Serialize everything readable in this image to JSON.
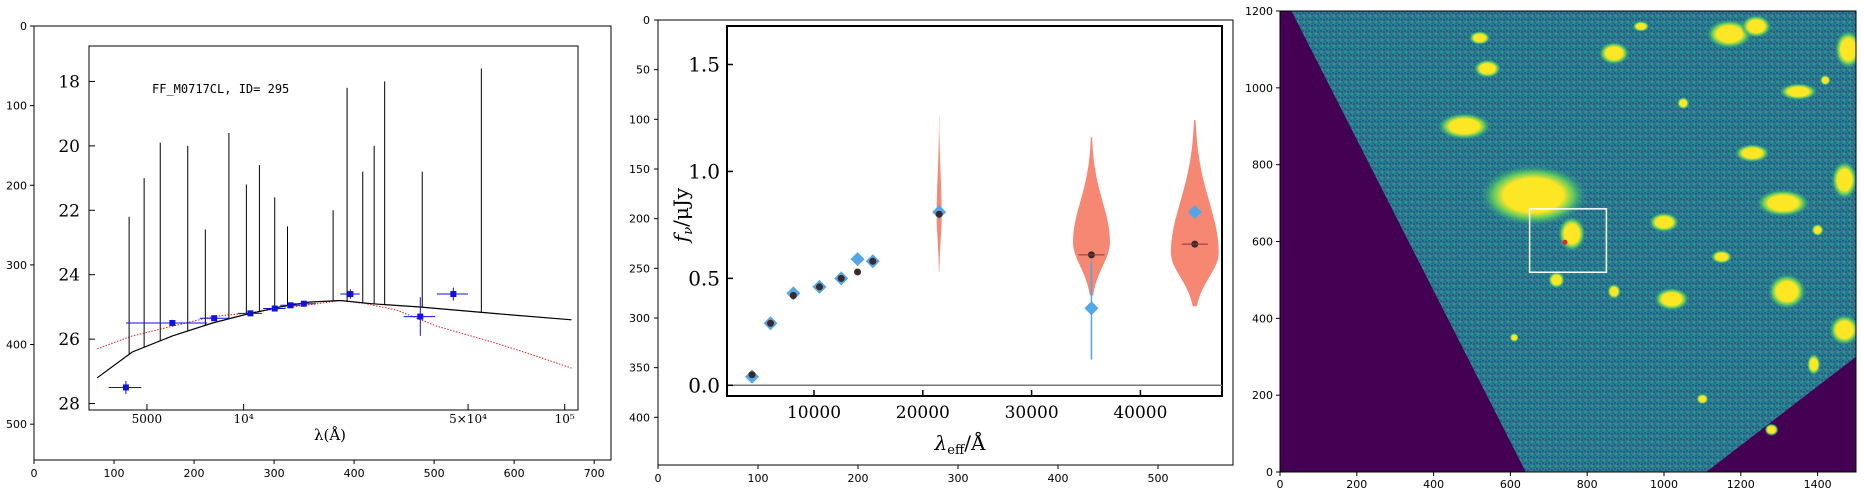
{
  "figure": {
    "panels": [
      {
        "id": "left",
        "frame_ticks_x": [
          "0",
          "100",
          "200",
          "300",
          "400",
          "500",
          "600",
          "700"
        ],
        "frame_ticks_y": [
          "0",
          "100",
          "200",
          "300",
          "400",
          "500"
        ],
        "inner_ticks_x": [
          "5000",
          "10⁴",
          "5×10⁴",
          "10⁵"
        ],
        "inner_ticks_y": [
          "18",
          "20",
          "22",
          "24",
          "26",
          "28"
        ],
        "xlabel": "λ(Å)",
        "annotation": "FF_M0717CL, ID= 295"
      },
      {
        "id": "middle",
        "frame_ticks_x": [
          "0",
          "100",
          "200",
          "300",
          "400",
          "500"
        ],
        "frame_ticks_y": [
          "0",
          "50",
          "100",
          "150",
          "200",
          "250",
          "300",
          "350",
          "400"
        ],
        "inner_ticks_x": [
          "10000",
          "20000",
          "30000",
          "40000"
        ],
        "inner_ticks_y": [
          "0.0",
          "0.5",
          "1.0",
          "1.5"
        ],
        "xlabel": "λ_eff/Å",
        "ylabel": "f_ν/μJy"
      },
      {
        "id": "right",
        "ticks_x": [
          "0",
          "200",
          "400",
          "600",
          "800",
          "1000",
          "1200",
          "1400"
        ],
        "ticks_y": [
          "0",
          "200",
          "400",
          "600",
          "800",
          "1000",
          "1200"
        ]
      }
    ]
  },
  "chart_data": [
    {
      "type": "scatter",
      "panel": "left",
      "annotation": "FF_M0717CL, ID= 295",
      "xlabel": "λ(Å)",
      "ylabel": "",
      "xscale": "log",
      "xlim": [
        3300,
        110000
      ],
      "ylim": [
        28.2,
        16.9
      ],
      "y_inverted": true,
      "series": [
        {
          "role": "photometry",
          "color": "#1010e0",
          "marker": "square",
          "points": [
            {
              "x": 4300,
              "y": 27.5,
              "xerr": [
                3800,
                4800
              ],
              "yerr": 0.2
            },
            {
              "x": 6000,
              "y": 25.5,
              "xerr": [
                4300,
                7700
              ],
              "yerr": 0.1
            },
            {
              "x": 8100,
              "y": 25.35,
              "xerr": [
                7300,
                9000
              ],
              "yerr": 0.05
            },
            {
              "x": 10500,
              "y": 25.2,
              "xerr": [
                9600,
                11400
              ],
              "yerr": 0.05
            },
            {
              "x": 12500,
              "y": 25.05,
              "xerr": [
                11500,
                13500
              ],
              "yerr": 0.05
            },
            {
              "x": 14000,
              "y": 24.95,
              "xerr": [
                13000,
                15000
              ],
              "yerr": 0.05
            },
            {
              "x": 15400,
              "y": 24.9,
              "xerr": [
                14000,
                16800
              ],
              "yerr": 0.05
            },
            {
              "x": 21500,
              "y": 24.6,
              "xerr": [
                20000,
                23000
              ],
              "yerr": 0.15
            },
            {
              "x": 35500,
              "y": 25.3,
              "xerr": [
                31500,
                39500
              ],
              "yerr": 0.6
            },
            {
              "x": 45000,
              "y": 24.6,
              "xerr": [
                40000,
                50000
              ],
              "yerr": 0.2
            }
          ]
        },
        {
          "role": "model_sed_black",
          "color": "#000000",
          "points": [
            {
              "x": 3500,
              "y": 27.2
            },
            {
              "x": 4500,
              "y": 26.4
            },
            {
              "x": 6000,
              "y": 25.9
            },
            {
              "x": 8000,
              "y": 25.5
            },
            {
              "x": 10000,
              "y": 25.25
            },
            {
              "x": 13000,
              "y": 25.0
            },
            {
              "x": 16000,
              "y": 24.85
            },
            {
              "x": 20000,
              "y": 24.8
            },
            {
              "x": 25000,
              "y": 24.9
            },
            {
              "x": 35000,
              "y": 25.0
            },
            {
              "x": 60000,
              "y": 25.2
            },
            {
              "x": 105000,
              "y": 25.4
            }
          ]
        },
        {
          "role": "model_sed_red",
          "color": "#e02020",
          "points": [
            {
              "x": 3500,
              "y": 26.3
            },
            {
              "x": 4500,
              "y": 25.9
            },
            {
              "x": 6000,
              "y": 25.6
            },
            {
              "x": 8000,
              "y": 25.3
            },
            {
              "x": 10000,
              "y": 25.2
            },
            {
              "x": 13000,
              "y": 25.05
            },
            {
              "x": 17000,
              "y": 24.9
            },
            {
              "x": 20000,
              "y": 24.8
            },
            {
              "x": 24000,
              "y": 24.9
            },
            {
              "x": 30000,
              "y": 25.1
            },
            {
              "x": 40000,
              "y": 25.6
            },
            {
              "x": 60000,
              "y": 26.1
            },
            {
              "x": 80000,
              "y": 26.5
            },
            {
              "x": 105000,
              "y": 26.9
            }
          ]
        },
        {
          "role": "emission_lines",
          "color": "#000000",
          "lines": [
            {
              "x": 4400,
              "top": 22.2
            },
            {
              "x": 4900,
              "top": 21.0
            },
            {
              "x": 5500,
              "top": 19.9
            },
            {
              "x": 6700,
              "top": 20.0
            },
            {
              "x": 7600,
              "top": 22.6
            },
            {
              "x": 9000,
              "top": 19.6
            },
            {
              "x": 10200,
              "top": 21.2
            },
            {
              "x": 11200,
              "top": 20.6
            },
            {
              "x": 12500,
              "top": 21.6
            },
            {
              "x": 13700,
              "top": 22.5
            },
            {
              "x": 19000,
              "top": 22.0
            },
            {
              "x": 21000,
              "top": 18.2
            },
            {
              "x": 23500,
              "top": 20.8
            },
            {
              "x": 25500,
              "top": 20.0
            },
            {
              "x": 27500,
              "top": 18.0
            },
            {
              "x": 36000,
              "top": 20.8
            },
            {
              "x": 55000,
              "top": 17.6
            }
          ]
        }
      ]
    },
    {
      "type": "scatter",
      "panel": "middle",
      "xlabel": "λ_eff/Å",
      "ylabel": "f_ν/μJy",
      "xlim": [
        2000,
        47500
      ],
      "ylim": [
        -0.05,
        1.68
      ],
      "reference_line": 0.0,
      "series": [
        {
          "role": "observed",
          "color": "#55a6e6",
          "marker": "diamond",
          "points": [
            {
              "x": 4300,
              "y": 0.04
            },
            {
              "x": 6000,
              "y": 0.29
            },
            {
              "x": 8100,
              "y": 0.43
            },
            {
              "x": 10500,
              "y": 0.46
            },
            {
              "x": 12500,
              "y": 0.5
            },
            {
              "x": 14000,
              "y": 0.59
            },
            {
              "x": 15400,
              "y": 0.58
            },
            {
              "x": 21500,
              "y": 0.81
            },
            {
              "x": 35500,
              "y": 0.36,
              "yerr": [
                0.12,
                0.58
              ]
            },
            {
              "x": 45000,
              "y": 0.81
            }
          ]
        },
        {
          "role": "model",
          "color": "#3a2a2a",
          "marker": "circle",
          "points": [
            {
              "x": 4300,
              "y": 0.05
            },
            {
              "x": 6000,
              "y": 0.29
            },
            {
              "x": 8100,
              "y": 0.42
            },
            {
              "x": 10500,
              "y": 0.46
            },
            {
              "x": 12500,
              "y": 0.5
            },
            {
              "x": 14000,
              "y": 0.53
            },
            {
              "x": 15400,
              "y": 0.58
            },
            {
              "x": 21500,
              "y": 0.8
            },
            {
              "x": 35500,
              "y": 0.61
            },
            {
              "x": 45000,
              "y": 0.66
            }
          ]
        },
        {
          "role": "posterior_violins",
          "color": "#f47a64",
          "violins": [
            {
              "x": 21500,
              "ymin": 0.53,
              "ymax": 1.26,
              "peak": 0.8,
              "half_width": 230
            },
            {
              "x": 35500,
              "ymin": 0.42,
              "ymax": 1.16,
              "peak": 0.67,
              "half_width": 1700
            },
            {
              "x": 45000,
              "ymin": 0.37,
              "ymax": 1.24,
              "peak": 0.62,
              "half_width": 2200
            }
          ]
        }
      ]
    },
    {
      "type": "heatmap",
      "panel": "right",
      "xlim": [
        0,
        1500
      ],
      "ylim": [
        0,
        1200
      ],
      "colormap": [
        "#440154",
        "#3b528b",
        "#21918c",
        "#5ec962",
        "#fde725"
      ],
      "box": {
        "x0": 650,
        "x1": 850,
        "y0": 520,
        "y1": 685
      },
      "source_marker": {
        "x": 742,
        "y": 598,
        "color": "#e0242c"
      }
    }
  ]
}
